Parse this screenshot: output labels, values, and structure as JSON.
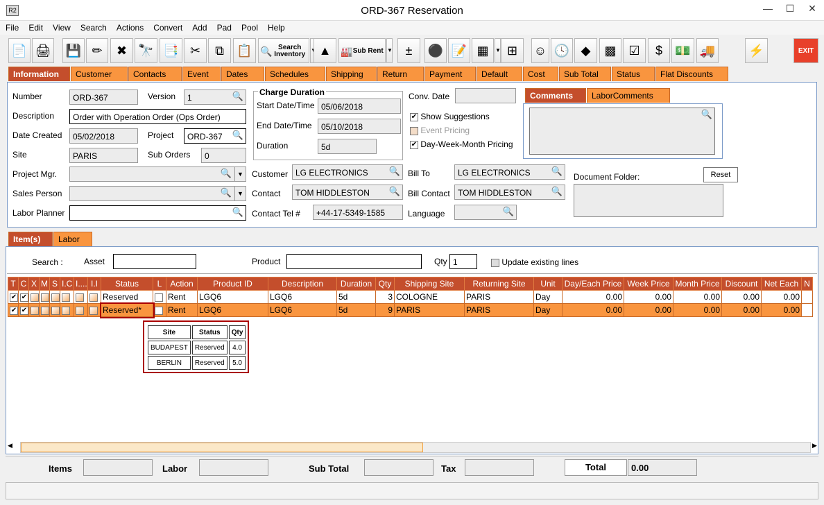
{
  "window": {
    "title": "ORD-367 Reservation",
    "logo": "R2"
  },
  "menu": [
    "File",
    "Edit",
    "View",
    "Search",
    "Actions",
    "Convert",
    "Add",
    "Pad",
    "Pool",
    "Help"
  ],
  "toolbar": {
    "search_inventory": "Search Inventory",
    "sub_rent": "Sub Rent",
    "exit": "EXIT",
    "icons": [
      "new-document-icon",
      "print-icon",
      "save-icon",
      "edit-pencil-icon",
      "delete-x-icon",
      "binoculars-icon",
      "convert-document-icon",
      "cut-scissors-icon",
      "copy-icon",
      "paste-icon",
      "search-inventory-icon",
      "shapes-icon",
      "sub-rent-factory-icon",
      "add-remove-icon",
      "balls-icon",
      "notepad-icon",
      "calculator-icon",
      "org-chart-icon",
      "smiley-icon",
      "clock-note-icon",
      "eraser-icon",
      "cubes-icon",
      "checklist-icon",
      "money-icon",
      "money-note-icon",
      "truck-icon",
      "lightning-icon",
      "exit-icon"
    ]
  },
  "tabs": [
    "Information",
    "Customer",
    "Contacts",
    "Event",
    "Dates",
    "Schedules",
    "Shipping",
    "Return",
    "Payment",
    "Default",
    "Cost",
    "Sub Total",
    "Status",
    "Flat Discounts"
  ],
  "info": {
    "number_label": "Number",
    "number": "ORD-367",
    "version_label": "Version",
    "version": "1",
    "description_label": "Description",
    "description": "Order with Operation Order (Ops Order)",
    "date_created_label": "Date Created",
    "date_created": "05/02/2018",
    "project_label": "Project",
    "project": "ORD-367",
    "site_label": "Site",
    "site": "PARIS",
    "sub_orders_label": "Sub Orders",
    "sub_orders": "0",
    "project_mgr_label": "Project Mgr.",
    "sales_person_label": "Sales Person",
    "labor_planner_label": "Labor Planner",
    "charge_duration_title": "Charge Duration",
    "start_label": "Start Date/Time",
    "start": "05/06/2018",
    "end_label": "End Date/Time",
    "end": "05/10/2018",
    "duration_label": "Duration",
    "duration": "5d",
    "conv_date_label": "Conv. Date",
    "show_suggestions": "Show Suggestions",
    "event_pricing": "Event Pricing",
    "dwm_pricing": "Day-Week-Month Pricing",
    "customer_label": "Customer",
    "customer": "LG ELECTRONICS",
    "contact_label": "Contact",
    "contact": "TOM HIDDLESTON",
    "contact_tel_label": "Contact Tel #",
    "contact_tel": "+44-17-5349-1585",
    "bill_to_label": "Bill To",
    "bill_to": "LG ELECTRONICS",
    "bill_contact_label": "Bill Contact",
    "bill_contact": "TOM HIDDLESTON",
    "language_label": "Language",
    "comment_tabs": [
      "Comments",
      "LaborComments"
    ],
    "document_folder_label": "Document Folder:",
    "reset": "Reset"
  },
  "items_tabs": [
    "Item(s)",
    "Labor"
  ],
  "search": {
    "label": "Search :",
    "asset_label": "Asset",
    "product_label": "Product",
    "qty_label": "Qty",
    "qty": "1",
    "update_label": "Update existing lines"
  },
  "grid": {
    "columns": [
      "T",
      "C",
      "X",
      "M",
      "S",
      "I.C",
      "I....",
      "I.I",
      "Status",
      "L",
      "Action",
      "Product ID",
      "Description",
      "Duration",
      "Qty",
      "Shipping Site",
      "Returning Site",
      "Unit",
      "Day/Each Price",
      "Week Price",
      "Month Price",
      "Discount",
      "Net Each",
      "N"
    ],
    "rows": [
      {
        "status": "Reserved",
        "action": "Rent",
        "product_id": "LGQ6",
        "description": "LGQ6",
        "duration": "5d",
        "qty": "3",
        "shipping": "COLOGNE",
        "returning": "PARIS",
        "unit": "Day",
        "day": "0.00",
        "week": "0.00",
        "month": "0.00",
        "discount": "0.00",
        "net": "0.00",
        "selected": false
      },
      {
        "status": "Reserved*",
        "action": "Rent",
        "product_id": "LGQ6",
        "description": "LGQ6",
        "duration": "5d",
        "qty": "9",
        "shipping": "PARIS",
        "returning": "PARIS",
        "unit": "Day",
        "day": "0.00",
        "week": "0.00",
        "month": "0.00",
        "discount": "0.00",
        "net": "0.00",
        "selected": true
      }
    ]
  },
  "popup": {
    "headers": [
      "Site",
      "Status",
      "Qty"
    ],
    "rows": [
      [
        "BUDAPEST",
        "Reserved",
        "4.0"
      ],
      [
        "BERLIN",
        "Reserved",
        "5.0"
      ]
    ]
  },
  "totals": {
    "items": "Items",
    "labor": "Labor",
    "sub_total": "Sub Total",
    "tax": "Tax",
    "total": "Total",
    "total_value": "0.00"
  },
  "colors": {
    "tab": "#f9953f",
    "active_tab": "#c44e2c"
  }
}
